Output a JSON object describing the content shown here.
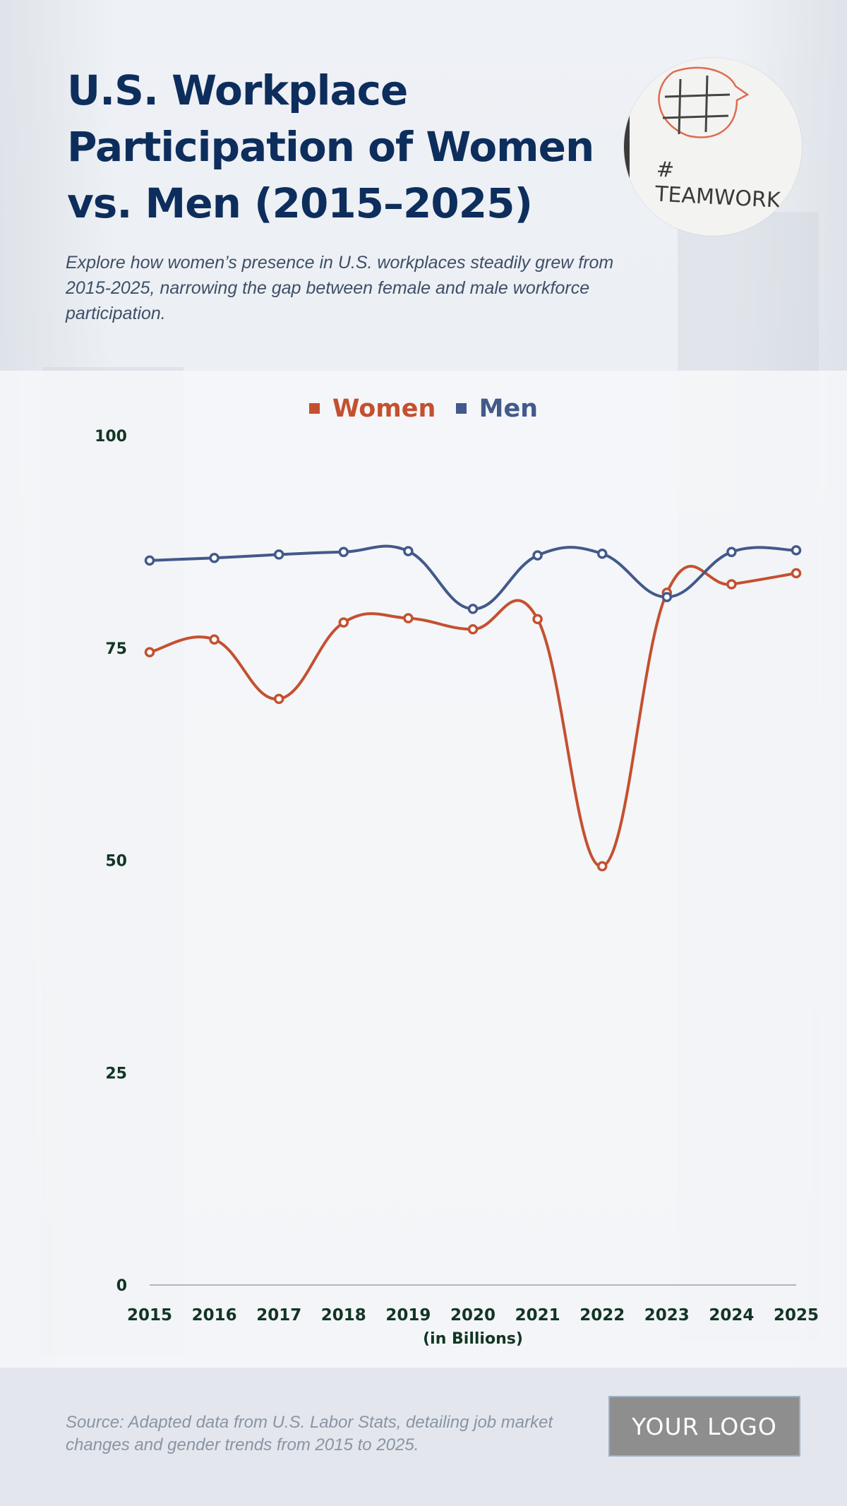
{
  "header": {
    "title": "U.S. Workplace Participation of Women vs. Men (2015–2025)",
    "subtitle": "Explore how women’s presence in U.S. workplaces steadily grew from 2015-2025, narrowing the gap between female and male workforce participation."
  },
  "photo": {
    "caption": "# TEAMWORK"
  },
  "footer": {
    "source": "Source: Adapted data from U.S. Labor Stats, detailing job market changes and gender trends from 2015 to 2025.",
    "logo": "YOUR LOGO"
  },
  "colors": {
    "women": "#c4502f",
    "men": "#43598a",
    "axis_text": "#123524",
    "title": "#0d2e5c"
  },
  "chart_data": {
    "type": "line",
    "title": "U.S. Workplace Participation of Women vs. Men (2015–2025)",
    "xlabel": "(in Billions)",
    "ylabel": "",
    "categories": [
      "2015",
      "2016",
      "2017",
      "2018",
      "2019",
      "2020",
      "2021",
      "2022",
      "2023",
      "2024",
      "2025"
    ],
    "yticks": [
      "0",
      "25",
      "50",
      "75",
      "100"
    ],
    "ylim": [
      0,
      100
    ],
    "legend": "top-center",
    "grid": false,
    "series": [
      {
        "name": "Women",
        "color": "#c4502f",
        "values": [
          74.5,
          76,
          69,
          78,
          78.5,
          77.2,
          78.4,
          49.3,
          81.5,
          82.5,
          83.8
        ]
      },
      {
        "name": "Men",
        "color": "#43598a",
        "values": [
          85.3,
          85.6,
          86,
          86.3,
          86.4,
          79.6,
          85.9,
          86.1,
          81,
          86.3,
          86.5
        ]
      }
    ]
  }
}
